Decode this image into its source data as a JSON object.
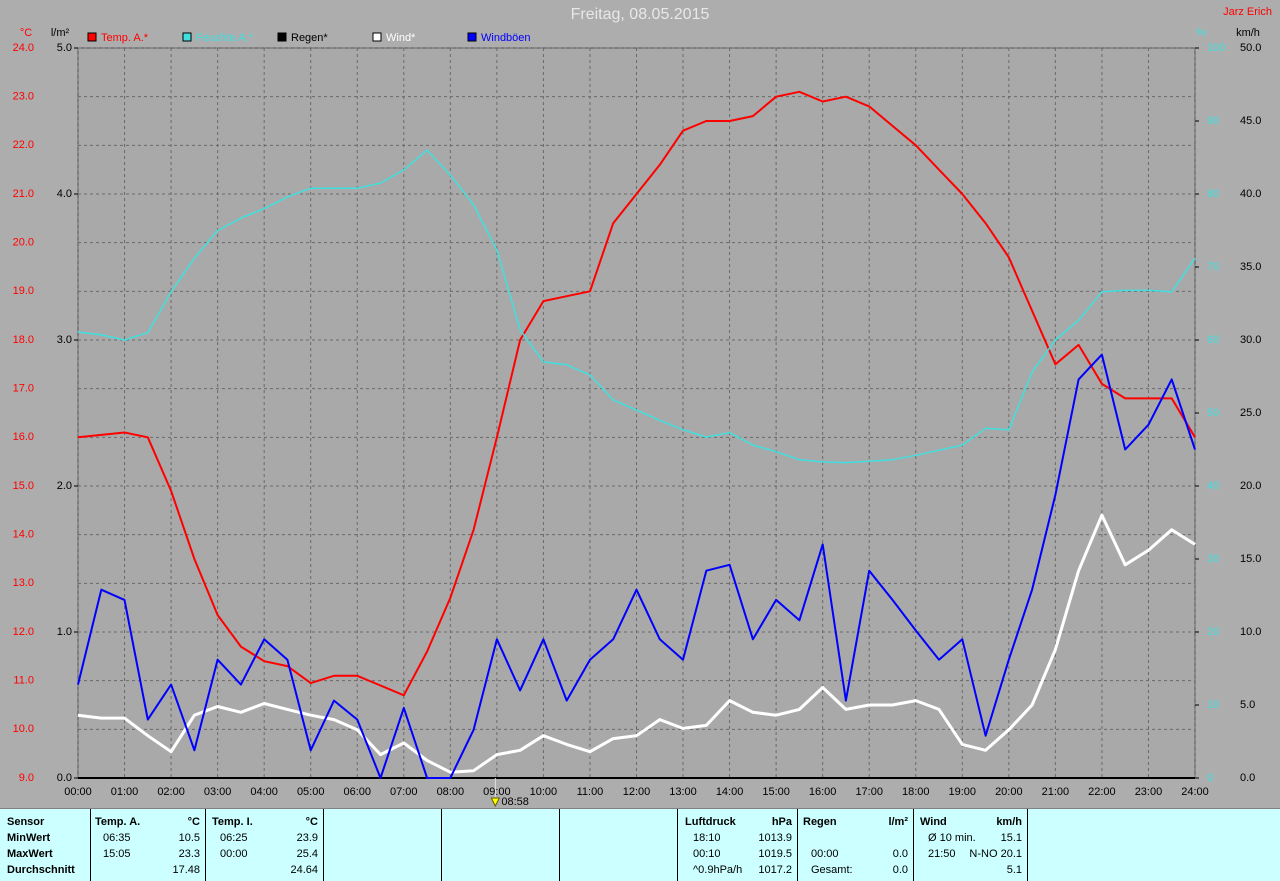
{
  "chart_data": {
    "type": "line",
    "title": "Freitag, 08.05.2015",
    "author": "Jarz Erich",
    "ylabel": "°C",
    "ycolor": "#ff0000",
    "ylim": [
      9,
      24
    ],
    "yticks": [
      {
        "value": 9,
        "label": "9.0"
      },
      {
        "value": 10,
        "label": "10.0"
      },
      {
        "value": 11,
        "label": "11.0"
      },
      {
        "value": 12,
        "label": "12.0"
      },
      {
        "value": 13,
        "label": "13.0"
      },
      {
        "value": 14,
        "label": "14.0"
      },
      {
        "value": 15,
        "label": "15.0"
      },
      {
        "value": 16,
        "label": "16.0"
      },
      {
        "value": 17,
        "label": "17.0"
      },
      {
        "value": 18,
        "label": "18.0"
      },
      {
        "value": 19,
        "label": "19.0"
      },
      {
        "value": 20,
        "label": "20.0"
      },
      {
        "value": 21,
        "label": "21.0"
      },
      {
        "value": 22,
        "label": "22.0"
      },
      {
        "value": 23,
        "label": "23.0"
      },
      {
        "value": 24,
        "label": "24.0"
      }
    ],
    "y3label": "l/m²",
    "y3color": "#000000",
    "y3lim": [
      0,
      5
    ],
    "y3ticks": [
      {
        "value": 0,
        "label": "0.0"
      },
      {
        "value": 1,
        "label": "1.0"
      },
      {
        "value": 2,
        "label": "2.0"
      },
      {
        "value": 3,
        "label": "3.0"
      },
      {
        "value": 4,
        "label": "4.0"
      },
      {
        "value": 5,
        "label": "5.0"
      }
    ],
    "y2label": "%",
    "y2color": "#40e0e0",
    "y2lim": [
      0,
      100
    ],
    "y2ticks": [
      0,
      10,
      20,
      30,
      40,
      50,
      60,
      70,
      80,
      90,
      100
    ],
    "y4label": "km/h",
    "y4color": "#000000",
    "y4lim": [
      0,
      50
    ],
    "y4ticks": [
      {
        "value": 0,
        "label": "0.0"
      },
      {
        "value": 5,
        "label": "5.0"
      },
      {
        "value": 10,
        "label": "10.0"
      },
      {
        "value": 15,
        "label": "15.0"
      },
      {
        "value": 20,
        "label": "20.0"
      },
      {
        "value": 25,
        "label": "25.0"
      },
      {
        "value": 30,
        "label": "30.0"
      },
      {
        "value": 35,
        "label": "35.0"
      },
      {
        "value": 40,
        "label": "40.0"
      },
      {
        "value": 45,
        "label": "45.0"
      },
      {
        "value": 50,
        "label": "50.0"
      }
    ],
    "xlim": [
      0,
      24
    ],
    "xticks": [
      {
        "value": 0,
        "label": "00:00"
      },
      {
        "value": 1,
        "label": "01:00"
      },
      {
        "value": 2,
        "label": "02:00"
      },
      {
        "value": 3,
        "label": "03:00"
      },
      {
        "value": 4,
        "label": "04:00"
      },
      {
        "value": 5,
        "label": "05:00"
      },
      {
        "value": 6,
        "label": "06:00"
      },
      {
        "value": 7,
        "label": "07:00"
      },
      {
        "value": 8,
        "label": "08:00"
      },
      {
        "value": 9,
        "label": "09:00"
      },
      {
        "value": 10,
        "label": "10:00"
      },
      {
        "value": 11,
        "label": "11:00"
      },
      {
        "value": 12,
        "label": "12:00"
      },
      {
        "value": 13,
        "label": "13:00"
      },
      {
        "value": 14,
        "label": "14:00"
      },
      {
        "value": 15,
        "label": "15:00"
      },
      {
        "value": 16,
        "label": "16:00"
      },
      {
        "value": 17,
        "label": "17:00"
      },
      {
        "value": 18,
        "label": "18:00"
      },
      {
        "value": 19,
        "label": "19:00"
      },
      {
        "value": 20,
        "label": "20:00"
      },
      {
        "value": 21,
        "label": "21:00"
      },
      {
        "value": 22,
        "label": "22:00"
      },
      {
        "value": 23,
        "label": "23:00"
      },
      {
        "value": 24,
        "label": "24:00"
      }
    ],
    "grid": true,
    "cursor": {
      "value": 8.967,
      "label": "08:58"
    },
    "x": [
      0,
      0.5,
      1,
      1.5,
      2,
      2.5,
      3,
      3.5,
      4,
      4.5,
      5,
      5.5,
      6,
      6.5,
      7,
      7.5,
      8,
      8.5,
      9,
      9.5,
      10,
      10.5,
      11,
      11.5,
      12,
      12.5,
      13,
      13.5,
      14,
      14.5,
      15,
      15.5,
      16,
      16.5,
      17,
      17.5,
      18,
      18.5,
      19,
      19.5,
      20,
      20.5,
      21,
      21.5,
      22,
      22.5,
      23,
      23.5,
      24
    ],
    "series": [
      {
        "name": "Temp. A.*",
        "color": "#ff0000",
        "axis": "y",
        "width": 2,
        "values": [
          16.0,
          16.05,
          16.1,
          16.0,
          14.9,
          13.5,
          12.35,
          11.7,
          11.4,
          11.3,
          10.95,
          11.1,
          11.1,
          10.9,
          10.7,
          11.6,
          12.7,
          14.1,
          16.0,
          18.0,
          18.8,
          18.9,
          19.0,
          20.4,
          21.0,
          21.6,
          22.3,
          22.5,
          22.5,
          22.6,
          23.0,
          23.1,
          22.9,
          23.0,
          22.8,
          22.4,
          22.0,
          21.5,
          21.0,
          20.4,
          19.7,
          18.6,
          17.5,
          17.9,
          17.1,
          16.8,
          16.8,
          16.8,
          16.0
        ]
      },
      {
        "name": "Feuchte A.*",
        "color": "#40e0e0",
        "axis": "y2",
        "width": 1.5,
        "values": [
          61.1,
          60.7,
          60.0,
          61.0,
          66.6,
          71.2,
          75.0,
          76.7,
          78.0,
          79.6,
          80.8,
          80.8,
          80.8,
          81.5,
          83.3,
          86.0,
          82.6,
          78.5,
          72.3,
          61.4,
          57.0,
          56.6,
          55.2,
          51.8,
          50.4,
          49.0,
          47.7,
          46.7,
          47.3,
          45.6,
          44.7,
          43.6,
          43.3,
          43.2,
          43.4,
          43.6,
          44.2,
          44.9,
          45.6,
          47.9,
          47.7,
          55.6,
          60.0,
          62.7,
          66.6,
          66.8,
          66.8,
          66.6,
          71.2
        ]
      },
      {
        "name": "Regen*",
        "color": "#000000",
        "axis": "y3",
        "width": 2,
        "values": [
          0,
          0,
          0,
          0,
          0,
          0,
          0,
          0,
          0,
          0,
          0,
          0,
          0,
          0,
          0,
          0,
          0,
          0,
          0,
          0,
          0,
          0,
          0,
          0,
          0,
          0,
          0,
          0,
          0,
          0,
          0,
          0,
          0,
          0,
          0,
          0,
          0,
          0,
          0,
          0,
          0,
          0,
          0,
          0,
          0,
          0,
          0,
          0,
          0
        ]
      },
      {
        "name": "Wind*",
        "color": "#ffffff",
        "axis": "y4",
        "width": 3,
        "values": [
          4.3,
          4.1,
          4.1,
          2.9,
          1.8,
          4.3,
          4.9,
          4.5,
          5.1,
          4.7,
          4.3,
          4.0,
          3.3,
          1.6,
          2.4,
          1.2,
          0.4,
          0.5,
          1.6,
          1.9,
          2.9,
          2.3,
          1.8,
          2.7,
          2.9,
          4.0,
          3.4,
          3.6,
          5.3,
          4.5,
          4.3,
          4.7,
          6.2,
          4.7,
          5.0,
          5.0,
          5.3,
          4.7,
          2.3,
          1.9,
          3.3,
          5.0,
          8.8,
          14.2,
          18.0,
          14.6,
          15.6,
          17.0,
          16.0
        ]
      },
      {
        "name": "Windböen",
        "color": "#0000ff",
        "axis": "y4",
        "width": 2,
        "values": [
          6.4,
          12.9,
          12.2,
          4.0,
          6.4,
          1.9,
          8.1,
          6.4,
          9.5,
          8.1,
          1.9,
          5.3,
          4.0,
          0,
          4.8,
          0,
          0,
          3.3,
          9.5,
          6.0,
          9.5,
          5.3,
          8.1,
          9.5,
          12.9,
          9.5,
          8.1,
          14.2,
          14.6,
          9.5,
          12.2,
          10.8,
          16.0,
          5.3,
          14.2,
          12.2,
          10.1,
          8.1,
          9.5,
          2.9,
          8.1,
          12.9,
          19.4,
          27.3,
          29.0,
          22.5,
          24.2,
          27.3,
          22.5
        ]
      }
    ]
  },
  "stats": {
    "labels": {
      "header": "Sensor",
      "rows": [
        "MinWert",
        "MaxWert",
        "Durchschnitt"
      ]
    },
    "blocks": [
      {
        "header": [
          "Temp. A.",
          "°C"
        ],
        "rows": [
          [
            "06:35",
            "10.5"
          ],
          [
            "15:05",
            "23.3"
          ],
          [
            null,
            "17.48"
          ]
        ]
      },
      {
        "header": [
          "Temp. I.",
          "°C"
        ],
        "rows": [
          [
            "06:25",
            "23.9"
          ],
          [
            "00:00",
            "25.4"
          ],
          [
            null,
            "24.64"
          ]
        ]
      },
      {
        "header": [
          "Luftdruck",
          "hPa"
        ],
        "rows": [
          [
            "18:10",
            "1013.9"
          ],
          [
            "00:10",
            "1019.5"
          ],
          [
            "^0.9hPa/h",
            "1017.2"
          ]
        ]
      },
      {
        "header": [
          "Regen",
          "l/m²"
        ],
        "rows": [
          [
            null,
            null
          ],
          [
            "00:00",
            "0.0"
          ],
          [
            "Gesamt:",
            "0.0"
          ]
        ]
      },
      {
        "header": [
          "Wind",
          "km/h"
        ],
        "rows": [
          [
            "Ø 10 min.",
            "15.1"
          ],
          [
            "21:50",
            "N-NO 20.1"
          ],
          [
            null,
            "5.1"
          ]
        ]
      }
    ]
  }
}
